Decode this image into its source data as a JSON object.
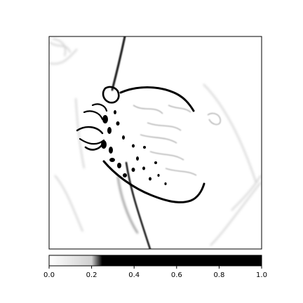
{
  "chart_data": {
    "type": "heatmap",
    "title": "",
    "xlabel": "",
    "ylabel": "",
    "colormap": "binary (white = 0, black = 1)",
    "color_range": [
      0,
      1
    ],
    "colorbar": {
      "orientation": "horizontal",
      "placement": "bottom",
      "ticks": [
        0.0,
        0.2,
        0.4,
        0.6,
        0.8,
        1.0
      ],
      "tick_labels": [
        "0.0",
        "0.2",
        "0.4",
        "0.6",
        "0.8",
        "1.0"
      ]
    },
    "image_axes": {
      "ticks_shown": false,
      "description": "grayscale edge-detection style saliency map of a strawberry"
    }
  },
  "colors": {
    "low": "#ffffff",
    "high": "#000000",
    "frame": "#000000"
  }
}
